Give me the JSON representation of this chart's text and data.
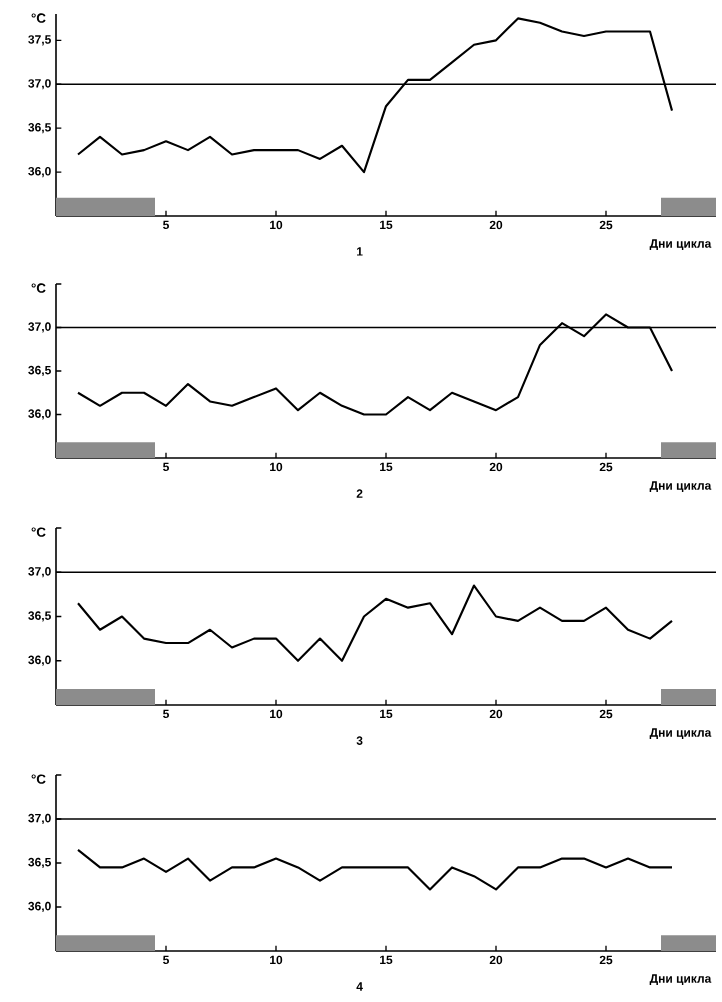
{
  "chart_data": [
    {
      "type": "line",
      "ylabel": "°C",
      "xlabel": "Дни цикла",
      "annotations": [
        "1"
      ],
      "xlim": [
        0,
        30
      ],
      "ylim": [
        35.5,
        37.8
      ],
      "xticks": [
        5,
        10,
        15,
        20,
        25
      ],
      "yticks": [
        {
          "value": 36.0,
          "label": "36,0"
        },
        {
          "value": 36.5,
          "label": "36,5"
        },
        {
          "value": 37.0,
          "label": "37,0"
        },
        {
          "value": 37.5,
          "label": "37,5"
        }
      ],
      "line_style": "solid",
      "ref_lines": [
        {
          "axis": "y",
          "value": 37.0
        }
      ],
      "bands": [
        {
          "axis": "x",
          "from": 0,
          "to": 4.5,
          "color": "#8c8c8c"
        },
        {
          "axis": "x",
          "from": 27.5,
          "to": 30,
          "color": "#8c8c8c"
        }
      ],
      "x": [
        1,
        2,
        3,
        4,
        5,
        6,
        7,
        8,
        9,
        10,
        11,
        12,
        13,
        14,
        15,
        16,
        17,
        18,
        19,
        20,
        21,
        22,
        23,
        24,
        25,
        26,
        27,
        28
      ],
      "series": [
        {
          "color": "#000000",
          "values": [
            36.2,
            36.4,
            36.2,
            36.25,
            36.35,
            36.25,
            36.4,
            36.2,
            36.25,
            36.25,
            36.25,
            36.15,
            36.3,
            36.0,
            36.75,
            37.05,
            37.05,
            37.25,
            37.45,
            37.5,
            37.75,
            37.7,
            37.6,
            37.55,
            37.6,
            37.6,
            37.6,
            36.7
          ]
        }
      ]
    },
    {
      "type": "line",
      "ylabel": "°C",
      "xlabel": "Дни цикла",
      "annotations": [
        "2"
      ],
      "xlim": [
        0,
        30
      ],
      "ylim": [
        35.5,
        37.5
      ],
      "xticks": [
        5,
        10,
        15,
        20,
        25
      ],
      "yticks": [
        {
          "value": 36.0,
          "label": "36,0"
        },
        {
          "value": 36.5,
          "label": "36,5"
        },
        {
          "value": 37.0,
          "label": "37,0"
        },
        {
          "value": 37.5,
          "label": null
        }
      ],
      "line_style": "solid",
      "ref_lines": [
        {
          "axis": "y",
          "value": 37.0
        }
      ],
      "bands": [
        {
          "axis": "x",
          "from": 0,
          "to": 4.5,
          "color": "#8c8c8c"
        },
        {
          "axis": "x",
          "from": 27.5,
          "to": 30,
          "color": "#8c8c8c"
        }
      ],
      "x": [
        1,
        2,
        3,
        4,
        5,
        6,
        7,
        8,
        9,
        10,
        11,
        12,
        13,
        14,
        15,
        16,
        17,
        18,
        19,
        20,
        21,
        22,
        23,
        24,
        25,
        26,
        27,
        28
      ],
      "series": [
        {
          "color": "#000000",
          "values": [
            36.25,
            36.1,
            36.25,
            36.25,
            36.1,
            36.35,
            36.15,
            36.1,
            36.2,
            36.3,
            36.05,
            36.25,
            36.1,
            36.0,
            36.0,
            36.2,
            36.05,
            36.25,
            36.15,
            36.05,
            36.2,
            36.8,
            37.05,
            36.9,
            37.15,
            37.0,
            37.0,
            36.5
          ]
        }
      ]
    },
    {
      "type": "line",
      "ylabel": "°C",
      "xlabel": "Дни цикла",
      "annotations": [
        "3"
      ],
      "xlim": [
        0,
        30
      ],
      "ylim": [
        35.5,
        37.5
      ],
      "xticks": [
        5,
        10,
        15,
        20,
        25
      ],
      "yticks": [
        {
          "value": 36.0,
          "label": "36,0"
        },
        {
          "value": 36.5,
          "label": "36,5"
        },
        {
          "value": 37.0,
          "label": "37,0"
        },
        {
          "value": 37.5,
          "label": null
        }
      ],
      "line_style": "solid",
      "ref_lines": [
        {
          "axis": "y",
          "value": 37.0
        }
      ],
      "bands": [
        {
          "axis": "x",
          "from": 0,
          "to": 4.5,
          "color": "#8c8c8c"
        },
        {
          "axis": "x",
          "from": 27.5,
          "to": 30,
          "color": "#8c8c8c"
        }
      ],
      "x": [
        1,
        2,
        3,
        4,
        5,
        6,
        7,
        8,
        9,
        10,
        11,
        12,
        13,
        14,
        15,
        16,
        17,
        18,
        19,
        20,
        21,
        22,
        23,
        24,
        25,
        26,
        27,
        28
      ],
      "series": [
        {
          "color": "#000000",
          "values": [
            36.65,
            36.35,
            36.5,
            36.25,
            36.2,
            36.2,
            36.35,
            36.15,
            36.25,
            36.25,
            36.0,
            36.25,
            36.0,
            36.5,
            36.7,
            36.6,
            36.65,
            36.3,
            36.85,
            36.5,
            36.45,
            36.6,
            36.45,
            36.45,
            36.6,
            36.35,
            36.25,
            36.45
          ]
        }
      ]
    },
    {
      "type": "line",
      "ylabel": "°C",
      "xlabel": "Дни цикла",
      "annotations": [
        "4"
      ],
      "xlim": [
        0,
        30
      ],
      "ylim": [
        35.5,
        37.5
      ],
      "xticks": [
        5,
        10,
        15,
        20,
        25
      ],
      "yticks": [
        {
          "value": 36.0,
          "label": "36,0"
        },
        {
          "value": 36.5,
          "label": "36,5"
        },
        {
          "value": 37.0,
          "label": "37,0"
        },
        {
          "value": 37.5,
          "label": null
        }
      ],
      "line_style": "solid",
      "ref_lines": [
        {
          "axis": "y",
          "value": 37.0
        }
      ],
      "bands": [
        {
          "axis": "x",
          "from": 0,
          "to": 4.5,
          "color": "#8c8c8c"
        },
        {
          "axis": "x",
          "from": 27.5,
          "to": 30,
          "color": "#8c8c8c"
        }
      ],
      "x": [
        1,
        2,
        3,
        4,
        5,
        6,
        7,
        8,
        9,
        10,
        11,
        12,
        13,
        14,
        15,
        16,
        17,
        18,
        19,
        20,
        21,
        22,
        23,
        24,
        25,
        26,
        27,
        28
      ],
      "series": [
        {
          "color": "#000000",
          "values": [
            36.65,
            36.45,
            36.45,
            36.55,
            36.4,
            36.55,
            36.3,
            36.45,
            36.45,
            36.55,
            36.45,
            36.3,
            36.45,
            36.45,
            36.45,
            36.45,
            36.2,
            36.45,
            36.35,
            36.2,
            36.45,
            36.45,
            36.55,
            36.55,
            36.45,
            36.55,
            36.45,
            36.45
          ]
        }
      ]
    }
  ]
}
